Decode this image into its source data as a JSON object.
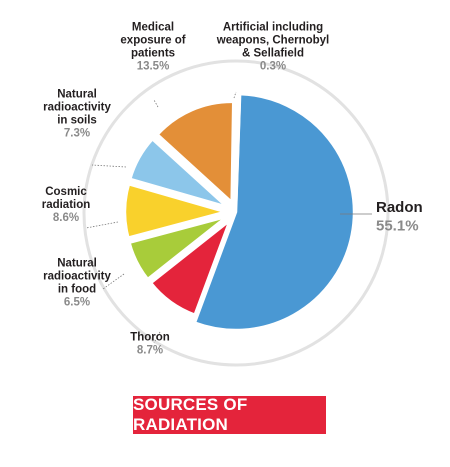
{
  "chart_data": {
    "type": "pie",
    "title": "SOURCES OF RADIATION",
    "slices": [
      {
        "name": "Radon",
        "value": 55.1,
        "label": "55.1%",
        "color": "#4a98d3",
        "lines": [
          "Radon"
        ],
        "exploded": false
      },
      {
        "name": "Thoron",
        "value": 8.7,
        "label": "8.7%",
        "color": "#e4243b",
        "lines": [
          "Thoron"
        ],
        "exploded": true
      },
      {
        "name": "Natural radioactivity in food",
        "value": 6.5,
        "label": "6.5%",
        "color": "#a8cc3a",
        "lines": [
          "Natural",
          "radioactivity",
          "in food"
        ],
        "exploded": true
      },
      {
        "name": "Cosmic radiation",
        "value": 8.6,
        "label": "8.6%",
        "color": "#f9d12c",
        "lines": [
          "Cosmic",
          "radiation"
        ],
        "exploded": true
      },
      {
        "name": "Natural radioactivity in soils",
        "value": 7.3,
        "label": "7.3%",
        "color": "#8cc6ea",
        "lines": [
          "Natural",
          "radioactivity",
          "in soils"
        ],
        "exploded": true
      },
      {
        "name": "Medical exposure of patients",
        "value": 13.5,
        "label": "13.5%",
        "color": "#e38f38",
        "lines": [
          "Medical",
          "exposure of",
          "patients"
        ],
        "exploded": true
      },
      {
        "name": "Artificial including weapons, Chernobyl & Sellafield",
        "value": 0.3,
        "label": "0.3%",
        "color": "#c9145a",
        "lines": [
          "Artificial including",
          "weapons, Chernobyl",
          "& Sellafield"
        ],
        "exploded": true
      }
    ]
  }
}
